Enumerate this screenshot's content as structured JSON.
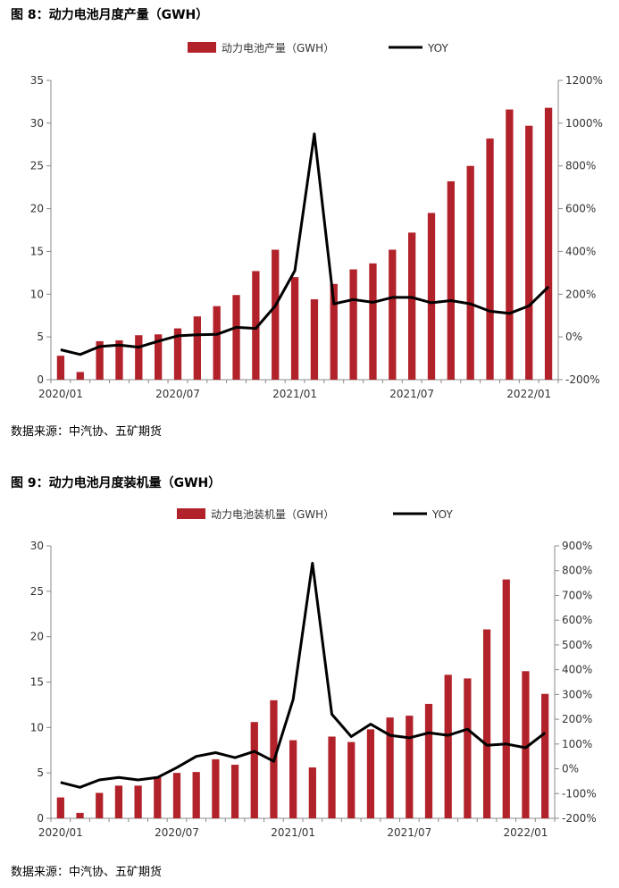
{
  "figures": [
    {
      "title": "图 8：动力电池月度产量（GWH）",
      "source": "数据来源：中汽协、五矿期货",
      "chart_data": {
        "type": "bar",
        "categories": [
          "2020/01",
          "2020/02",
          "2020/03",
          "2020/04",
          "2020/05",
          "2020/06",
          "2020/07",
          "2020/08",
          "2020/09",
          "2020/10",
          "2020/11",
          "2020/12",
          "2021/01",
          "2021/02",
          "2021/03",
          "2021/04",
          "2021/05",
          "2021/06",
          "2021/07",
          "2021/08",
          "2021/09",
          "2021/10",
          "2021/11",
          "2021/12",
          "2022/01",
          "2022/02"
        ],
        "x_tick_labels": [
          "2020/01",
          "2020/07",
          "2021/01",
          "2021/07",
          "2022/01"
        ],
        "series": [
          {
            "name": "动力电池产量（GWH）",
            "type": "bar",
            "axis": "left",
            "color": "#b2222a",
            "values": [
              2.8,
              0.9,
              4.5,
              4.6,
              5.2,
              5.3,
              6.0,
              7.4,
              8.6,
              9.9,
              12.7,
              15.2,
              12.0,
              9.4,
              11.2,
              12.9,
              13.6,
              15.2,
              17.2,
              19.5,
              23.2,
              25.0,
              28.2,
              31.6,
              29.7,
              31.8
            ]
          },
          {
            "name": "YOY",
            "type": "line",
            "axis": "right",
            "color": "#000000",
            "values": [
              -60,
              -82,
              -45,
              -38,
              -48,
              -20,
              5,
              10,
              12,
              45,
              40,
              145,
              310,
              950,
              155,
              175,
              162,
              185,
              185,
              160,
              170,
              155,
              120,
              110,
              145,
              235
            ]
          }
        ],
        "left_axis": {
          "ylim": [
            0,
            35
          ],
          "ticks": [
            "0",
            "5",
            "10",
            "15",
            "20",
            "25",
            "30",
            "35"
          ]
        },
        "right_axis": {
          "ylim": [
            -200,
            1200
          ],
          "ticks": [
            "-200%",
            "0%",
            "200%",
            "400%",
            "600%",
            "800%",
            "1000%",
            "1200%"
          ]
        },
        "legend_position": "top"
      }
    },
    {
      "title": "图 9：动力电池月度装机量（GWH）",
      "source": "数据来源：中汽协、五矿期货",
      "chart_data": {
        "type": "bar",
        "categories": [
          "2020/01",
          "2020/02",
          "2020/03",
          "2020/04",
          "2020/05",
          "2020/06",
          "2020/07",
          "2020/08",
          "2020/09",
          "2020/10",
          "2020/11",
          "2020/12",
          "2021/01",
          "2021/02",
          "2021/03",
          "2021/04",
          "2021/05",
          "2021/06",
          "2021/07",
          "2021/08",
          "2021/09",
          "2021/10",
          "2021/11",
          "2021/12",
          "2022/01",
          "2022/02"
        ],
        "x_tick_labels": [
          "2020/01",
          "2020/07",
          "2021/01",
          "2021/07",
          "2022/01"
        ],
        "series": [
          {
            "name": "动力电池装机量（GWH）",
            "type": "bar",
            "axis": "left",
            "color": "#b2222a",
            "values": [
              2.3,
              0.6,
              2.8,
              3.6,
              3.6,
              4.6,
              5.0,
              5.1,
              6.5,
              5.9,
              10.6,
              13.0,
              8.6,
              5.6,
              9.0,
              8.4,
              9.8,
              11.1,
              11.3,
              12.6,
              15.8,
              15.4,
              20.8,
              26.3,
              16.2,
              13.7
            ]
          },
          {
            "name": "YOY",
            "type": "line",
            "axis": "right",
            "color": "#000000",
            "values": [
              -55,
              -75,
              -45,
              -35,
              -45,
              -35,
              5,
              50,
              65,
              45,
              70,
              30,
              280,
              830,
              220,
              130,
              180,
              135,
              125,
              145,
              135,
              160,
              95,
              100,
              85,
              145
            ]
          }
        ],
        "left_axis": {
          "ylim": [
            0,
            30
          ],
          "ticks": [
            "0",
            "5",
            "10",
            "15",
            "20",
            "25",
            "30"
          ]
        },
        "right_axis": {
          "ylim": [
            -200,
            900
          ],
          "ticks": [
            "-200%",
            "-100%",
            "0%",
            "100%",
            "200%",
            "300%",
            "400%",
            "500%",
            "600%",
            "700%",
            "800%",
            "900%"
          ]
        },
        "legend_position": "top"
      }
    }
  ]
}
